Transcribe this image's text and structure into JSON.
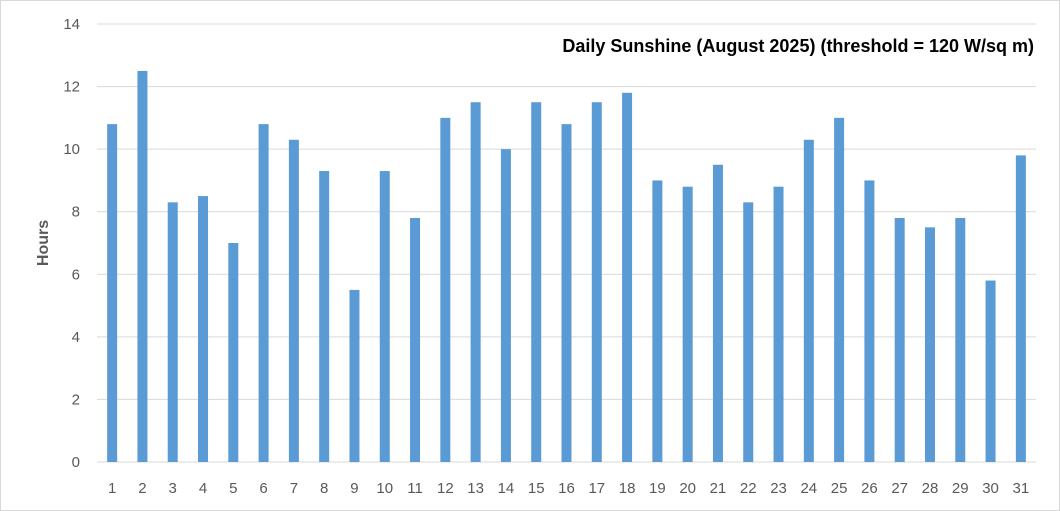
{
  "chart_data": {
    "type": "bar",
    "title": "Daily Sunshine (August 2025) (threshold = 120 W/sq m)",
    "xlabel": "",
    "ylabel": "Hours",
    "categories": [
      "1",
      "2",
      "3",
      "4",
      "5",
      "6",
      "7",
      "8",
      "9",
      "10",
      "11",
      "12",
      "13",
      "14",
      "15",
      "16",
      "17",
      "18",
      "19",
      "20",
      "21",
      "22",
      "23",
      "24",
      "25",
      "26",
      "27",
      "28",
      "29",
      "30",
      "31"
    ],
    "values": [
      10.8,
      12.5,
      8.3,
      8.5,
      7.0,
      10.8,
      10.3,
      9.3,
      5.5,
      9.3,
      7.8,
      11.0,
      11.5,
      10.0,
      11.5,
      10.8,
      11.5,
      11.8,
      9.0,
      8.8,
      9.5,
      8.3,
      8.8,
      10.3,
      11.0,
      9.0,
      7.8,
      7.5,
      7.8,
      5.8,
      9.8
    ],
    "yticks": [
      "0",
      "2",
      "4",
      "6",
      "8",
      "10",
      "12",
      "14"
    ],
    "ylim": [
      0,
      14
    ],
    "grid": true,
    "legend": "none",
    "bar_color": "#5b9bd5",
    "grid_color": "#d9d9d9"
  }
}
